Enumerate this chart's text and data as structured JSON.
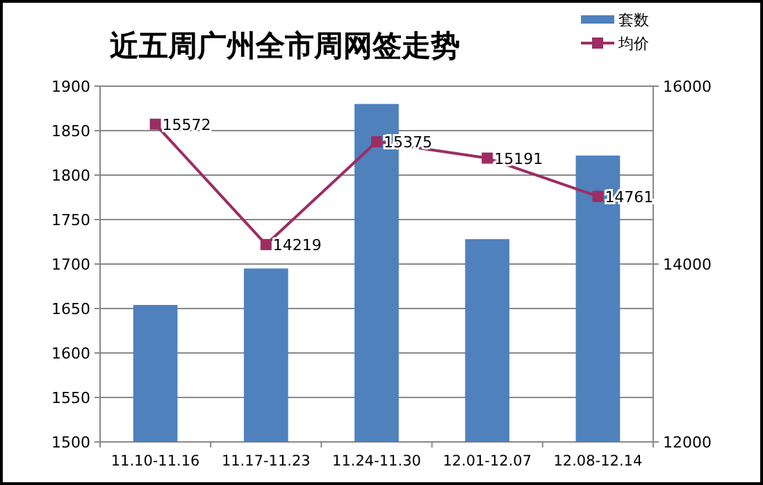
{
  "chart_data": {
    "type": "bar",
    "title": "近五周广州全市周网签走势",
    "categories": [
      "11.10-11.16",
      "11.17-11.23",
      "11.24-11.30",
      "12.01-12.07",
      "12.08-12.14"
    ],
    "series": [
      {
        "name": "套数",
        "color": "#4f81bd",
        "values": [
          1654,
          1695,
          1880,
          1728,
          1822
        ]
      },
      {
        "name": "均价",
        "type": "line",
        "axis": "y2",
        "color": "#9b2d62",
        "marker": "square",
        "values": [
          15572,
          14219,
          15375,
          15191,
          14761
        ],
        "value_labels": [
          "15572",
          "14219",
          "15375",
          "15191",
          "14761"
        ]
      }
    ],
    "ylim": [
      1500,
      1900
    ],
    "yticks": [
      1500,
      1550,
      1600,
      1650,
      1700,
      1750,
      1800,
      1850,
      1900
    ],
    "y2lim": [
      12000,
      16000
    ],
    "y2ticks": [
      12000,
      14000,
      16000
    ],
    "grid": "y",
    "legend": "top right"
  }
}
